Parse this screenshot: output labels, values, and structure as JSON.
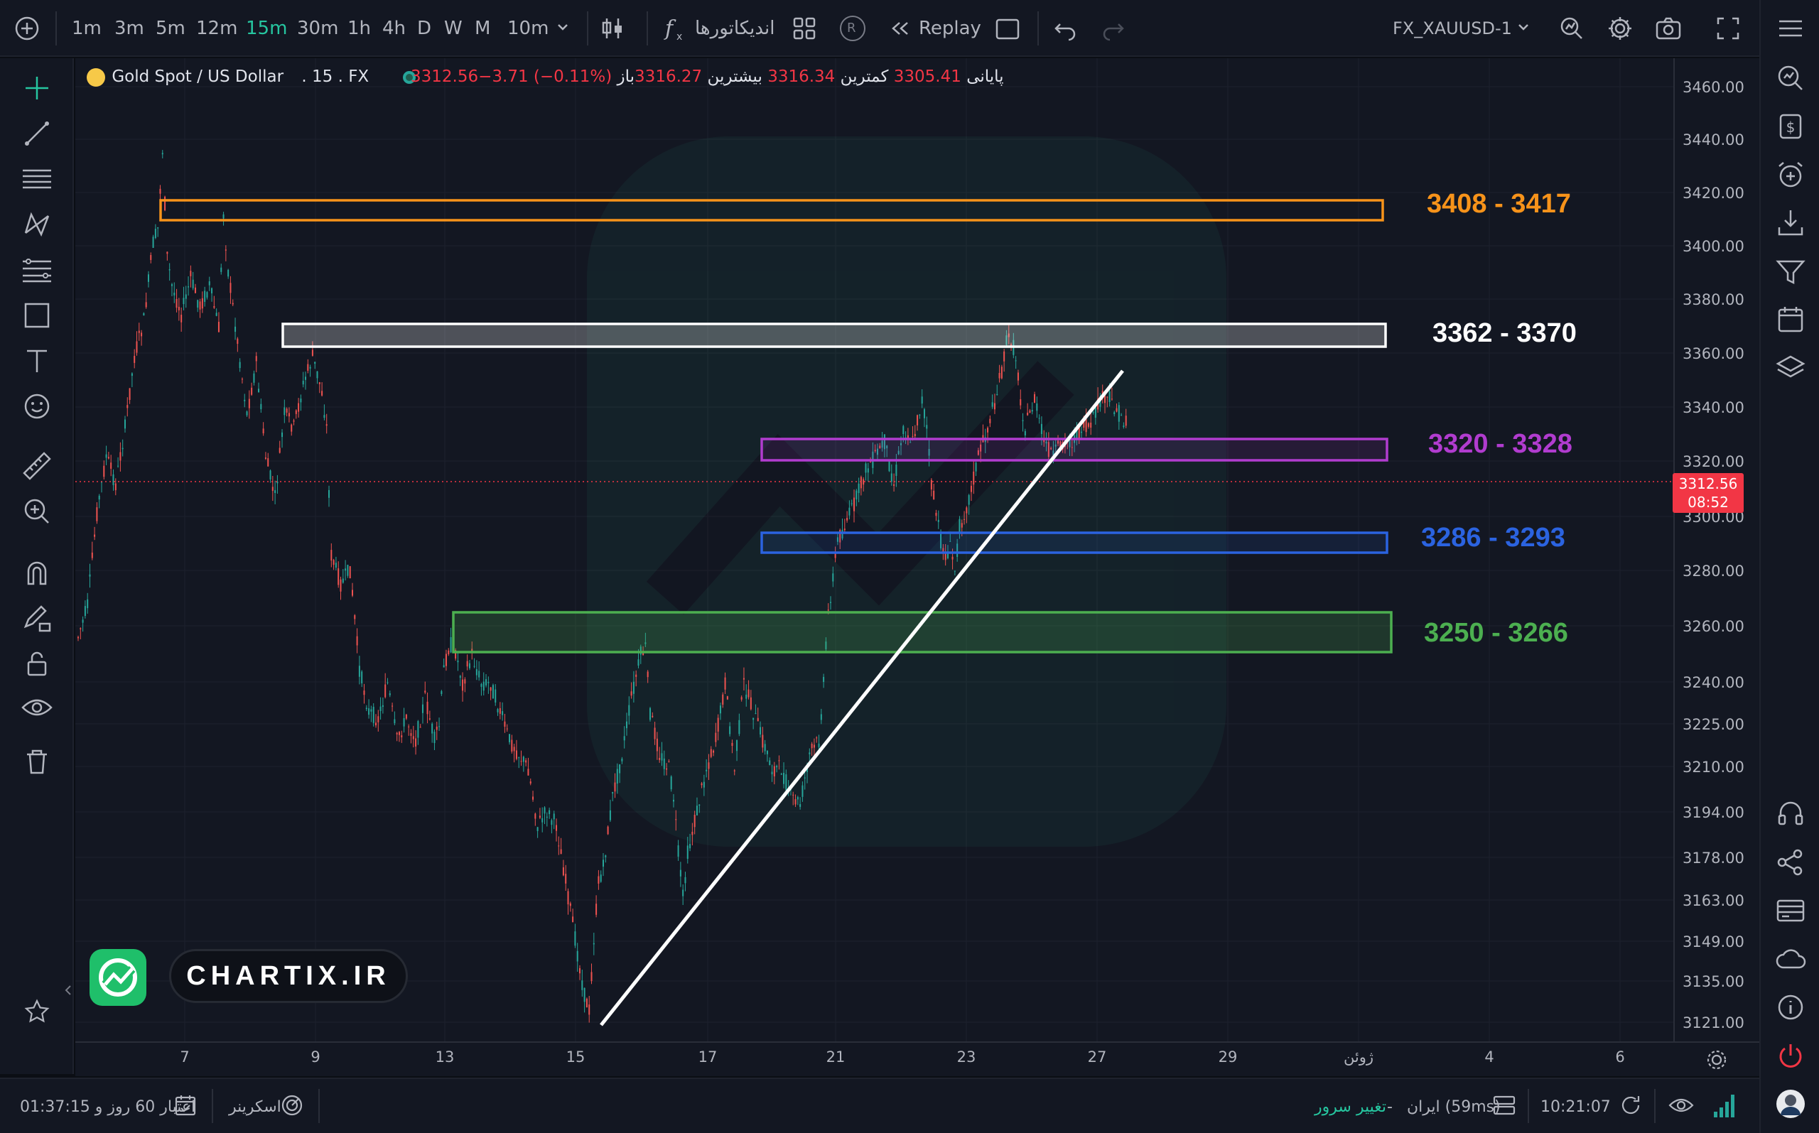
{
  "toolbar": {
    "timeframes": [
      "1m",
      "3m",
      "5m",
      "12m",
      "15m",
      "30m",
      "1h",
      "4h",
      "D",
      "W",
      "M",
      "10m"
    ],
    "active_timeframe": "15m",
    "indicators_label": "اندیکاتورها",
    "replay_label": "Replay",
    "replay_badge": "R",
    "symbol_select": "FX_XAUUSD-1"
  },
  "legend": {
    "symbol": "Gold Spot / US Dollar",
    "interval": "15",
    "exchange": "FX",
    "open_label": "باز",
    "open": "3316.27",
    "high_label": "بیشترین",
    "high": "3316.34",
    "low_label": "کمترین",
    "low": "3305.41",
    "close_label": "پایانی",
    "close": "3312.56",
    "change": "−3.71 (−0.11%)"
  },
  "price_axis": {
    "ticks": [
      "3460.00",
      "3440.00",
      "3420.00",
      "3400.00",
      "3380.00",
      "3360.00",
      "3340.00",
      "3320.00",
      "3300.00",
      "3280.00",
      "3260.00",
      "3240.00",
      "3225.00",
      "3210.00",
      "3194.00",
      "3178.00",
      "3163.00",
      "3149.00",
      "3135.00",
      "3121.00"
    ],
    "current_price": "3312.56",
    "countdown": "08:52"
  },
  "time_axis": {
    "ticks": [
      "7",
      "9",
      "13",
      "15",
      "17",
      "21",
      "23",
      "27",
      "29",
      "ژوئن",
      "4",
      "6"
    ]
  },
  "zones": [
    {
      "label": "3408 - 3417",
      "color": "#f7931a"
    },
    {
      "label": "3362 - 3370",
      "color": "#ffffff"
    },
    {
      "label": "3320 - 3328",
      "color": "#b13ccf"
    },
    {
      "label": "3286 - 3293",
      "color": "#2b63e0"
    },
    {
      "label": "3250 - 3266",
      "color": "#4caf50"
    }
  ],
  "branding": {
    "site": "CHARTIX.IR"
  },
  "bottombar": {
    "credit": "اعتبار 60 روز و 01:37:15",
    "screener": "اسکرینر",
    "change_server": "تغییر سرور",
    "dash": "-",
    "server": "ایران (59ms)",
    "clock": "10:21:07"
  },
  "colors": {
    "up": "#26a69a",
    "down": "#ef5350",
    "accent": "#26c6a0",
    "price_line": "#f23645"
  },
  "icons": {
    "left_toolbar": [
      "crosshair-icon",
      "trend-line-icon",
      "horizontal-lines-icon",
      "pattern-icon",
      "fib-icon",
      "rectangle-icon",
      "text-icon",
      "emoji-icon",
      "ruler-icon",
      "zoom-icon",
      "magnet-icon",
      "pencil-lock-icon",
      "lock-icon",
      "eye-icon",
      "trash-icon",
      "star-icon"
    ],
    "right_toolbar": [
      "menu-icon",
      "search-icon",
      "dollar-icon",
      "alert-add-icon",
      "download-icon",
      "filter-icon",
      "calendar-icon",
      "layers-icon",
      "support-icon",
      "share-icon",
      "card-icon",
      "cloud-icon",
      "info-icon",
      "power-icon",
      "avatar"
    ]
  }
}
